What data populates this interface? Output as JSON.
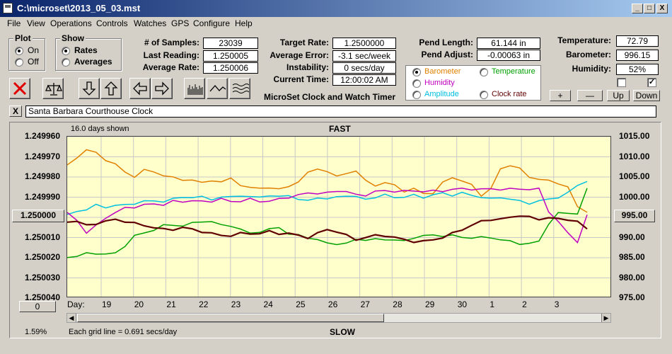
{
  "window": {
    "title": "C:\\microset\\2013_05_03.mst",
    "min_glyph": "_",
    "max_glyph": "□",
    "close_glyph": "X"
  },
  "menu": [
    "File",
    "View",
    "Operations",
    "Controls",
    "Watches",
    "GPS",
    "Configure",
    "Help"
  ],
  "plot_group": {
    "label": "Plot",
    "options": [
      "On",
      "Off"
    ],
    "selected": "On"
  },
  "show_group": {
    "label": "Show",
    "options": [
      "Rates",
      "Averages"
    ],
    "selected": "Rates"
  },
  "stats": {
    "samples_label": "# of Samples:",
    "samples": "23039",
    "last_label": "Last Reading:",
    "last": "1.250005",
    "avg_rate_label": "Average Rate:",
    "avg_rate": "1.250006",
    "target_label": "Target Rate:",
    "target": "1.2500000",
    "avg_err_label": "Average Error:",
    "avg_err": "-3.1 sec/week",
    "instab_label": "Instability:",
    "instab": "0 secs/day",
    "time_label": "Current Time:",
    "time": "12:00:02 AM",
    "pend_len_label": "Pend Length:",
    "pend_len": "61.144 in",
    "pend_adj_label": "Pend Adjust:",
    "pend_adj": "-0.00063 in",
    "temp_label": "Temperature:",
    "temp": "72.79",
    "baro_label": "Barometer:",
    "baro": "996.15",
    "hum_label": "Humidity:",
    "hum": "52%"
  },
  "app_caption": "MicroSet Clock and Watch Timer",
  "sensor_group": {
    "items": [
      {
        "label": "Barometer",
        "color": "#e08000",
        "selected": true
      },
      {
        "label": "Temperature",
        "color": "#00a000",
        "selected": false
      },
      {
        "label": "Humidity",
        "color": "#c000c0",
        "selected": false
      },
      {
        "label": "Clock rate",
        "color": "#600000",
        "selected": false
      },
      {
        "label": "Amplitude",
        "color": "#00c0e0",
        "selected": false
      }
    ]
  },
  "small_buttons": {
    "plus": "+",
    "minus": "—",
    "up": "Up",
    "down": "Down"
  },
  "checkboxes": {
    "left_checked": false,
    "right_checked": true,
    "check_glyph": "✓"
  },
  "clock_name": {
    "close_glyph": "X",
    "value": "Santa Barbara Courthouse Clock"
  },
  "chart_panel": {
    "days_shown": "16.0 days shown",
    "top_label": "FAST",
    "bottom_label": "SLOW",
    "grid_note": "Each grid line = 0.691 secs/day",
    "percent": "1.59%",
    "center_left_btn": "1.250000",
    "center_right_btn": "995.00",
    "zero_btn": "0",
    "day_label": "Day:"
  },
  "chart_data": {
    "type": "line",
    "x_labels": [
      "19",
      "20",
      "21",
      "22",
      "23",
      "24",
      "25",
      "26",
      "27",
      "28",
      "29",
      "30",
      "1",
      "2",
      "3"
    ],
    "y_left_ticks": [
      "1.249960",
      "1.249970",
      "1.249980",
      "1.249990",
      "1.250000",
      "1.250010",
      "1.250020",
      "1.250030",
      "1.250040"
    ],
    "y_right_ticks": [
      "1015.00",
      "1010.00",
      "1005.00",
      "1000.00",
      "995.00",
      "990.00",
      "985.00",
      "980.00",
      "975.00"
    ],
    "y_left_range": [
      1.24996,
      1.25004
    ],
    "y_right_range": [
      975,
      1015
    ],
    "grid": true,
    "series": [
      {
        "color": "#e08000",
        "values": [
          1008,
          1009.5,
          1012,
          1011,
          1009,
          1008.5,
          1006,
          1005,
          1007,
          1006,
          1005.5,
          1005,
          1004,
          1004.5,
          1003.5,
          1004,
          1004,
          1004.5,
          1003,
          1002.5,
          1002,
          1002.5,
          1002,
          1002.5,
          1004,
          1006,
          1007,
          1006.5,
          1005,
          1006,
          1006.5,
          1004,
          1003,
          1003.5,
          1003,
          1001.5,
          1002,
          1001,
          1001,
          1003.5,
          1005,
          1004,
          1003,
          1000.5,
          1002,
          1007,
          1008,
          1007,
          1005,
          1004.5,
          1004,
          1003.5,
          1002.5,
          997.5,
          996.5
        ]
      },
      {
        "color": "#00c0e0",
        "values": [
          995.5,
          996.5,
          997,
          998,
          997.5,
          998,
          998,
          998.5,
          999,
          999,
          999,
          999.5,
          1000,
          1000,
          1000,
          999.5,
          1000,
          1000,
          1000.5,
          1000,
          1000,
          1000.5,
          1000,
          1000.5,
          999.5,
          999,
          1000,
          999.5,
          1000,
          1000.5,
          1000,
          999.5,
          1000,
          1000.5,
          1000,
          1000,
          1000.5,
          1000,
          1000.5,
          1001,
          1000.5,
          1001,
          1000.5,
          1000,
          999.5,
          1000,
          999.5,
          999,
          998.5,
          999,
          999.5,
          1000,
          1001,
          1003,
          1004
        ]
      },
      {
        "color": "#c000c0",
        "values": [
          996,
          994.5,
          991,
          993,
          995,
          996,
          997.5,
          997.5,
          998,
          998.5,
          998,
          999,
          999,
          999,
          999,
          999,
          999.5,
          999,
          999,
          999.5,
          999,
          999,
          999.5,
          1000,
          1000.5,
          1001,
          1001,
          1001,
          1001.5,
          1001.5,
          1000.5,
          1000.5,
          1001.5,
          1001.5,
          1001.5,
          1001.5,
          1001.5,
          1001.5,
          1001.5,
          1001.5,
          1002,
          1002,
          1002,
          1002,
          1002,
          1002,
          1002,
          1002,
          1002,
          1002,
          996.5,
          994,
          991,
          989,
          995.5
        ]
      },
      {
        "color": "#00a000",
        "values": [
          985,
          985.5,
          986,
          986,
          986,
          986,
          988,
          990.5,
          991,
          992,
          993,
          993,
          993,
          993.5,
          994,
          994,
          993,
          993,
          992,
          991,
          991.5,
          992,
          992.5,
          991,
          990.5,
          990,
          989.5,
          988.5,
          988.5,
          988.5,
          989.5,
          989.5,
          989.5,
          989.5,
          989.5,
          989,
          990,
          990.5,
          990.5,
          990.5,
          990.5,
          990,
          990,
          990,
          990,
          989.5,
          989,
          988.5,
          988.5,
          989,
          993.5,
          996,
          996,
          996,
          1002
        ]
      },
      {
        "color": "#600000",
        "values": [
          994,
          994,
          993,
          993.5,
          994,
          994.5,
          994,
          993.5,
          993,
          992.5,
          992,
          992,
          992.5,
          992,
          991.5,
          991,
          990.5,
          990.5,
          991,
          991,
          991,
          991.5,
          991,
          991,
          990.5,
          990,
          991,
          992,
          991.5,
          990.5,
          989.5,
          990,
          990.5,
          990.5,
          990,
          989.5,
          989,
          989,
          989.5,
          990,
          991,
          992,
          993,
          994,
          994.5,
          994.5,
          995,
          995.5,
          995,
          994.5,
          995,
          994.5,
          994.5,
          994,
          992
        ]
      }
    ]
  }
}
